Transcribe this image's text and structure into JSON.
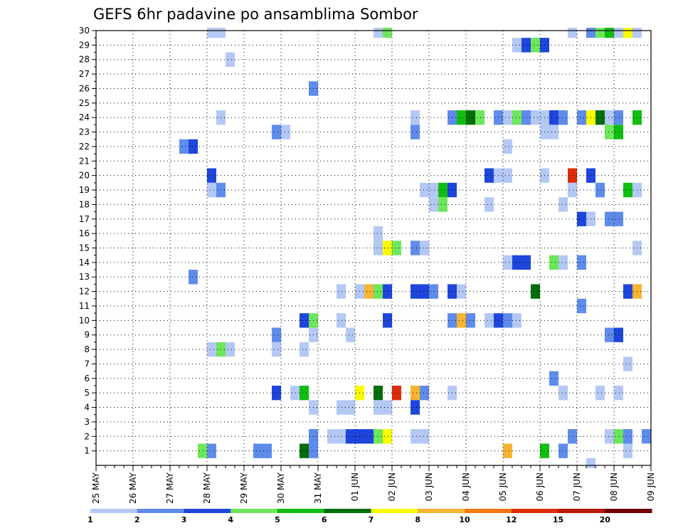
{
  "chart_data": {
    "type": "heatmap",
    "title": "GEFS 6hr padavine po ansamblima Sombor",
    "x_start": "25 MAY",
    "x_end": "09 JUN",
    "x_step": "6hr",
    "x_tick_labels": [
      "25 MAY",
      "26 MAY",
      "27 MAY",
      "28 MAY",
      "29 MAY",
      "30 MAY",
      "31 MAY",
      "01 JUN",
      "02 JUN",
      "03 JUN",
      "04 JUN",
      "05 JUN",
      "06 JUN",
      "07 JUN",
      "08 JUN",
      "09 JUN"
    ],
    "y_tick_labels": [
      "1",
      "2",
      "3",
      "4",
      "5",
      "6",
      "7",
      "8",
      "9",
      "10",
      "11",
      "12",
      "13",
      "14",
      "15",
      "16",
      "17",
      "18",
      "19",
      "20",
      "21",
      "22",
      "23",
      "24",
      "25",
      "26",
      "27",
      "28",
      "29",
      "30"
    ],
    "ylim": [
      0,
      30
    ],
    "grid": true,
    "colorbar": {
      "labels": [
        "1",
        "2",
        "3",
        "4",
        "5",
        "6",
        "7",
        "8",
        "10",
        "12",
        "15",
        "20"
      ],
      "colors": [
        "#b4c8f5",
        "#5f8ceb",
        "#1e46dc",
        "#6ee65a",
        "#10be10",
        "#006e0a",
        "#fafa00",
        "#f5b432",
        "#f57814",
        "#dc2d0a",
        "#b41905",
        "#6e0000"
      ]
    },
    "cell_width_steps": 1,
    "cells": [
      [
        12,
        30,
        0
      ],
      [
        13,
        30,
        0
      ],
      [
        30,
        30,
        0
      ],
      [
        31,
        30,
        3
      ],
      [
        51,
        30,
        0
      ],
      [
        53,
        30,
        1
      ],
      [
        54,
        30,
        3
      ],
      [
        55,
        30,
        4
      ],
      [
        56,
        30,
        0
      ],
      [
        57,
        30,
        6
      ],
      [
        58,
        30,
        0
      ],
      [
        45,
        29,
        0
      ],
      [
        46,
        29,
        2
      ],
      [
        47,
        29,
        3
      ],
      [
        48,
        29,
        2
      ],
      [
        14,
        28,
        0
      ],
      [
        23,
        26,
        1
      ],
      [
        13,
        24,
        0
      ],
      [
        34,
        24,
        0
      ],
      [
        38,
        24,
        1
      ],
      [
        39,
        24,
        4
      ],
      [
        40,
        24,
        5
      ],
      [
        41,
        24,
        3
      ],
      [
        43,
        24,
        1
      ],
      [
        44,
        24,
        0
      ],
      [
        45,
        24,
        3
      ],
      [
        46,
        24,
        1
      ],
      [
        47,
        24,
        0
      ],
      [
        48,
        24,
        0
      ],
      [
        49,
        24,
        2
      ],
      [
        50,
        24,
        1
      ],
      [
        52,
        24,
        1
      ],
      [
        53,
        24,
        6
      ],
      [
        54,
        24,
        5
      ],
      [
        55,
        24,
        0
      ],
      [
        56,
        24,
        1
      ],
      [
        58,
        24,
        4
      ],
      [
        19,
        23,
        1
      ],
      [
        20,
        23,
        0
      ],
      [
        34,
        23,
        1
      ],
      [
        48,
        23,
        0
      ],
      [
        49,
        23,
        0
      ],
      [
        55,
        23,
        3
      ],
      [
        56,
        23,
        4
      ],
      [
        9,
        22,
        1
      ],
      [
        10,
        22,
        2
      ],
      [
        44,
        22,
        0
      ],
      [
        12,
        20,
        2
      ],
      [
        42,
        20,
        2
      ],
      [
        43,
        20,
        0
      ],
      [
        44,
        20,
        0
      ],
      [
        48,
        20,
        0
      ],
      [
        51,
        20,
        9
      ],
      [
        53,
        20,
        2
      ],
      [
        12,
        19,
        0
      ],
      [
        13,
        19,
        1
      ],
      [
        35,
        19,
        0
      ],
      [
        36,
        19,
        0
      ],
      [
        37,
        19,
        4
      ],
      [
        38,
        19,
        2
      ],
      [
        51,
        19,
        0
      ],
      [
        54,
        19,
        1
      ],
      [
        57,
        19,
        4
      ],
      [
        58,
        19,
        0
      ],
      [
        36,
        18,
        0
      ],
      [
        37,
        18,
        3
      ],
      [
        42,
        18,
        0
      ],
      [
        50,
        18,
        0
      ],
      [
        52,
        17,
        2
      ],
      [
        53,
        17,
        0
      ],
      [
        55,
        17,
        1
      ],
      [
        56,
        17,
        1
      ],
      [
        30,
        16,
        0
      ],
      [
        30,
        15,
        0
      ],
      [
        31,
        15,
        6
      ],
      [
        32,
        15,
        3
      ],
      [
        34,
        15,
        1
      ],
      [
        35,
        15,
        0
      ],
      [
        58,
        15,
        0
      ],
      [
        44,
        14,
        0
      ],
      [
        45,
        14,
        2
      ],
      [
        46,
        14,
        2
      ],
      [
        49,
        14,
        3
      ],
      [
        50,
        14,
        0
      ],
      [
        52,
        14,
        1
      ],
      [
        10,
        13,
        1
      ],
      [
        26,
        12,
        0
      ],
      [
        28,
        12,
        0
      ],
      [
        29,
        12,
        7
      ],
      [
        30,
        12,
        3
      ],
      [
        31,
        12,
        2
      ],
      [
        34,
        12,
        2
      ],
      [
        35,
        12,
        2
      ],
      [
        36,
        12,
        1
      ],
      [
        38,
        12,
        2
      ],
      [
        39,
        12,
        0
      ],
      [
        47,
        12,
        5
      ],
      [
        57,
        12,
        2
      ],
      [
        58,
        12,
        7
      ],
      [
        52,
        11,
        1
      ],
      [
        22,
        10,
        2
      ],
      [
        23,
        10,
        3
      ],
      [
        26,
        10,
        0
      ],
      [
        31,
        10,
        2
      ],
      [
        38,
        10,
        1
      ],
      [
        39,
        10,
        7
      ],
      [
        40,
        10,
        1
      ],
      [
        42,
        10,
        0
      ],
      [
        43,
        10,
        2
      ],
      [
        44,
        10,
        1
      ],
      [
        45,
        10,
        0
      ],
      [
        19,
        9,
        1
      ],
      [
        23,
        9,
        0
      ],
      [
        27,
        9,
        0
      ],
      [
        55,
        9,
        1
      ],
      [
        56,
        9,
        2
      ],
      [
        12,
        8,
        0
      ],
      [
        13,
        8,
        3
      ],
      [
        14,
        8,
        0
      ],
      [
        19,
        8,
        0
      ],
      [
        22,
        8,
        0
      ],
      [
        57,
        7,
        0
      ],
      [
        49,
        6,
        1
      ],
      [
        19,
        5,
        2
      ],
      [
        21,
        5,
        0
      ],
      [
        22,
        5,
        4
      ],
      [
        28,
        5,
        6
      ],
      [
        30,
        5,
        5
      ],
      [
        32,
        5,
        9
      ],
      [
        34,
        5,
        7
      ],
      [
        35,
        5,
        1
      ],
      [
        38,
        5,
        0
      ],
      [
        50,
        5,
        0
      ],
      [
        54,
        5,
        0
      ],
      [
        56,
        5,
        0
      ],
      [
        23,
        4,
        0
      ],
      [
        26,
        4,
        0
      ],
      [
        27,
        4,
        0
      ],
      [
        30,
        4,
        0
      ],
      [
        31,
        4,
        0
      ],
      [
        34,
        4,
        2
      ],
      [
        23,
        2,
        1
      ],
      [
        25,
        2,
        0
      ],
      [
        26,
        2,
        0
      ],
      [
        27,
        2,
        2
      ],
      [
        28,
        2,
        2
      ],
      [
        29,
        2,
        2
      ],
      [
        30,
        2,
        3
      ],
      [
        31,
        2,
        6
      ],
      [
        34,
        2,
        0
      ],
      [
        35,
        2,
        0
      ],
      [
        51,
        2,
        1
      ],
      [
        55,
        2,
        0
      ],
      [
        56,
        2,
        3
      ],
      [
        57,
        2,
        1
      ],
      [
        59,
        2,
        1
      ],
      [
        11,
        1,
        3
      ],
      [
        12,
        1,
        1
      ],
      [
        17,
        1,
        1
      ],
      [
        18,
        1,
        1
      ],
      [
        22,
        1,
        5
      ],
      [
        23,
        1,
        1
      ],
      [
        44,
        1,
        7
      ],
      [
        48,
        1,
        4
      ],
      [
        50,
        1,
        1
      ],
      [
        57,
        1,
        0
      ],
      [
        53,
        0,
        0
      ]
    ]
  }
}
